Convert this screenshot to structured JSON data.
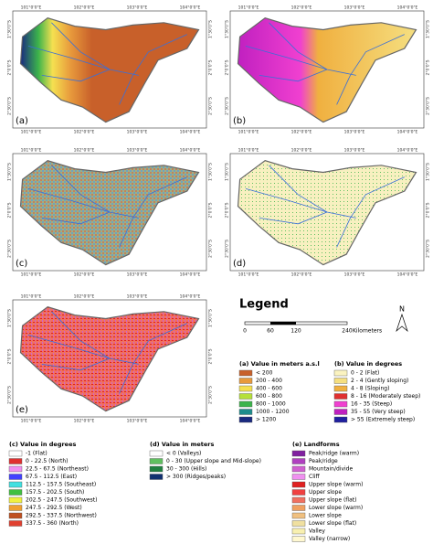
{
  "panels": [
    {
      "label": "(a)"
    },
    {
      "label": "(b)"
    },
    {
      "label": "(c)"
    },
    {
      "label": "(d)"
    },
    {
      "label": "(e)"
    }
  ],
  "lon_labels": [
    "101°0'0\"E",
    "102°0'0\"E",
    "103°0'0\"E",
    "104°0'0\"E"
  ],
  "lat_labels": [
    "1°30'0\"S",
    "2°0'0\"S",
    "2°30'0\"S"
  ],
  "legend": {
    "title": "Legend",
    "scale_ticks": [
      "0",
      "60",
      "120",
      "240"
    ],
    "scale_unit": "Kilometers",
    "north": "N"
  },
  "legend_a": {
    "title": "(a) Value in meters a.s.l",
    "items": [
      {
        "label": "< 200",
        "color": "#c8602a"
      },
      {
        "label": "200 - 400",
        "color": "#e89a3c"
      },
      {
        "label": "400 - 600",
        "color": "#f5e050"
      },
      {
        "label": "600 - 800",
        "color": "#b5e03a"
      },
      {
        "label": "800 - 1000",
        "color": "#3cb44b"
      },
      {
        "label": "1000 - 1200",
        "color": "#1e8c8c"
      },
      {
        "label": "> 1200",
        "color": "#1a2a80"
      }
    ]
  },
  "legend_b": {
    "title": "(b) Value in degrees",
    "items": [
      {
        "label": "0 - 2 (Flat)",
        "color": "#fbf3c0"
      },
      {
        "label": "2 - 4 (Gently sloping)",
        "color": "#f5df80"
      },
      {
        "label": "4 - 8 (Sloping)",
        "color": "#f0b040"
      },
      {
        "label": "8 - 16 (Moderately steep)",
        "color": "#e03030"
      },
      {
        "label": "16 - 35 (Steep)",
        "color": "#f040d0"
      },
      {
        "label": "35 - 55 (Very steep)",
        "color": "#c020c0"
      },
      {
        "label": "> 55 (Extremely steep)",
        "color": "#2020a0"
      }
    ]
  },
  "legend_c": {
    "title": "(c) Value in degrees",
    "items": [
      {
        "label": "-1 (Flat)",
        "color": "#ffffff"
      },
      {
        "label": "0 - 22.5 (North)",
        "color": "#e03030"
      },
      {
        "label": "22.5 - 67.5 (Northeast)",
        "color": "#f090f0"
      },
      {
        "label": "67.5 - 112.5 (East)",
        "color": "#4040ff"
      },
      {
        "label": "112.5 - 157.5 (Southeast)",
        "color": "#40e0e0"
      },
      {
        "label": "157.5 - 202.5 (South)",
        "color": "#40c040"
      },
      {
        "label": "202.5 - 247.5 (Southwest)",
        "color": "#f0f040"
      },
      {
        "label": "247.5 - 292.5 (West)",
        "color": "#f0a030"
      },
      {
        "label": "292.5 - 337.5 (Northwest)",
        "color": "#c05020"
      },
      {
        "label": "337.5 - 360 (North)",
        "color": "#e04030"
      }
    ]
  },
  "legend_d": {
    "title": "(d) Value in meters",
    "items": [
      {
        "label": "< 0 (Valleys)",
        "color": "#ffffff"
      },
      {
        "label": "0 - 30 (Upper slope and Mid-slope)",
        "color": "#60c060"
      },
      {
        "label": "30 - 300 (Hills)",
        "color": "#208040"
      },
      {
        "label": "> 300 (Ridges/peaks)",
        "color": "#103070"
      }
    ]
  },
  "legend_e": {
    "title": "(e) Landforms",
    "items": [
      {
        "label": "Peak/ridge (warm)",
        "color": "#8020a0"
      },
      {
        "label": "Peak/ridge",
        "color": "#b040c0"
      },
      {
        "label": "Mountain/divide",
        "color": "#d060d0"
      },
      {
        "label": "Cliff",
        "color": "#f090f0"
      },
      {
        "label": "Upper slope (warm)",
        "color": "#e02020"
      },
      {
        "label": "Upper slope",
        "color": "#f04040"
      },
      {
        "label": "Upper slope (flat)",
        "color": "#f07060"
      },
      {
        "label": "Lower slope (warm)",
        "color": "#f0a060"
      },
      {
        "label": "Lower slope",
        "color": "#f0c080"
      },
      {
        "label": "Lower slope (flat)",
        "color": "#f0e0a0"
      },
      {
        "label": "Valley",
        "color": "#f8f0b0"
      },
      {
        "label": "Valley (narrow)",
        "color": "#fff8d0"
      }
    ]
  }
}
